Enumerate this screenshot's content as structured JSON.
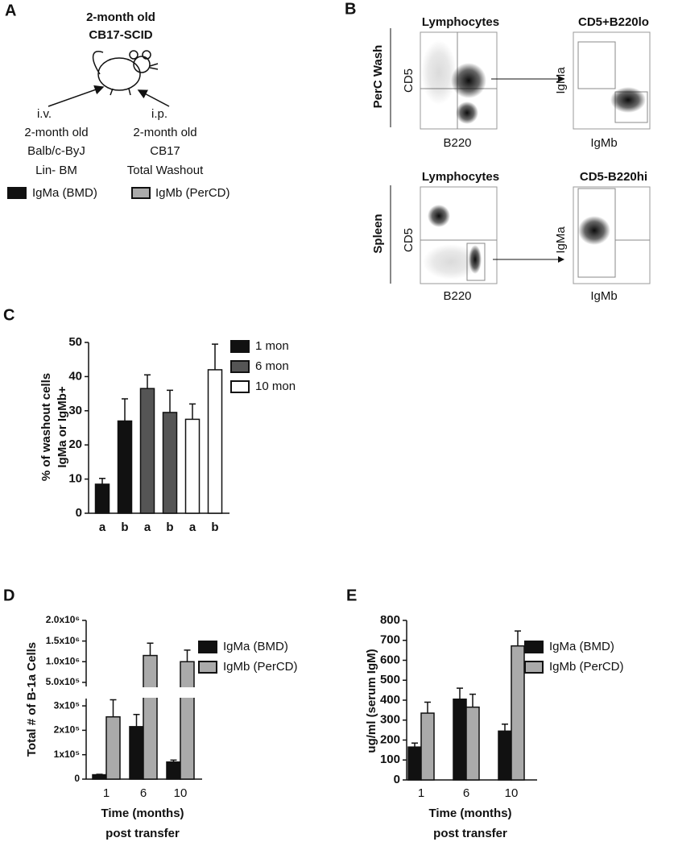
{
  "panels": [
    "A",
    "B",
    "C",
    "D",
    "E"
  ],
  "panel_a": {
    "recipient": [
      "2-month old",
      "CB17-SCID"
    ],
    "left_route": "i.v.",
    "left_donor": [
      "2-month old",
      "Balb/c-ByJ",
      "Lin- BM"
    ],
    "right_route": "i.p.",
    "right_donor": [
      "2-month old",
      "CB17",
      "Total Washout"
    ],
    "legend": [
      "IgMa (BMD)",
      "IgMb (PerCD)"
    ]
  },
  "panel_b": {
    "rows": [
      {
        "label": "PerC Wash",
        "plots": [
          {
            "title": "Lymphocytes",
            "x_label": "B220",
            "y_label": "CD5"
          },
          {
            "title": "CD5+B220lo",
            "x_label": "IgMb",
            "y_label": "IgMa"
          }
        ]
      },
      {
        "label": "Spleen",
        "plots": [
          {
            "title": "Lymphocytes",
            "x_label": "B220",
            "y_label": "CD5"
          },
          {
            "title": "CD5-B220hi",
            "x_label": "IgMb",
            "y_label": "IgMa"
          }
        ]
      }
    ]
  },
  "chart_data": [
    {
      "type": "bar",
      "ylabel": [
        "% of washout cells",
        "IgMa or IgMb+"
      ],
      "categories": [
        "a",
        "b",
        "a",
        "b",
        "a",
        "b"
      ],
      "series": [
        {
          "name": "1 mon",
          "color": "#111111",
          "values": [
            8.5,
            27,
            null,
            null,
            null,
            null
          ],
          "errors": [
            1.7,
            6.5,
            null,
            null,
            null,
            null
          ]
        },
        {
          "name": "6 mon",
          "color": "#555555",
          "values": [
            null,
            null,
            36.5,
            29.5,
            null,
            null
          ],
          "errors": [
            null,
            null,
            4,
            6.5,
            null,
            null
          ]
        },
        {
          "name": "10 mon",
          "color": "#ffffff",
          "values": [
            null,
            null,
            null,
            null,
            27.5,
            42
          ],
          "errors": [
            null,
            null,
            null,
            null,
            4.5,
            7.5
          ]
        }
      ],
      "ylim": [
        0,
        50
      ],
      "yticks": [
        0,
        10,
        20,
        30,
        40,
        50
      ],
      "legend": "right"
    },
    {
      "type": "bar",
      "ylabel": [
        "Total # of B-1a Cells"
      ],
      "xlabel": [
        "Time (months)",
        "post transfer"
      ],
      "categories": [
        "1",
        "6",
        "10"
      ],
      "series": [
        {
          "name": "IgMa (BMD)",
          "color": "#111111",
          "values": [
            18000,
            215000,
            70000
          ],
          "errors": [
            2000,
            50000,
            8000
          ]
        },
        {
          "name": "IgMb (PerCD)",
          "color": "#aaaaaa",
          "values": [
            255000,
            1150000,
            1000000
          ],
          "errors": [
            70000,
            300000,
            280000
          ]
        }
      ],
      "y_segments": [
        {
          "ylim": [
            0,
            330000
          ],
          "yticks": [
            0,
            {
              "value": 100000,
              "label": "1x10⁵"
            },
            {
              "value": 200000,
              "label": "2x10⁵"
            },
            {
              "value": 300000,
              "label": "3x10⁵"
            }
          ]
        },
        {
          "ylim": [
            400000,
            2000000
          ],
          "yticks": [
            {
              "value": 500000,
              "label": "5.0x10⁵"
            },
            {
              "value": 1000000,
              "label": "1.0x10⁶"
            },
            {
              "value": 1500000,
              "label": "1.5x10⁶"
            },
            {
              "value": 2000000,
              "label": "2.0x10⁶"
            }
          ]
        }
      ],
      "legend": "right"
    },
    {
      "type": "bar",
      "ylabel": [
        "ug/ml (serum IgM)"
      ],
      "xlabel": [
        "Time (months)",
        "post transfer"
      ],
      "categories": [
        "1",
        "6",
        "10"
      ],
      "series": [
        {
          "name": "IgMa (BMD)",
          "color": "#111111",
          "values": [
            165,
            405,
            245
          ],
          "errors": [
            20,
            55,
            35
          ]
        },
        {
          "name": "IgMb (PerCD)",
          "color": "#aaaaaa",
          "values": [
            335,
            365,
            672
          ],
          "errors": [
            55,
            65,
            75
          ]
        }
      ],
      "ylim": [
        0,
        800
      ],
      "yticks": [
        0,
        100,
        200,
        300,
        400,
        500,
        600,
        700,
        800
      ],
      "legend": "right"
    }
  ]
}
